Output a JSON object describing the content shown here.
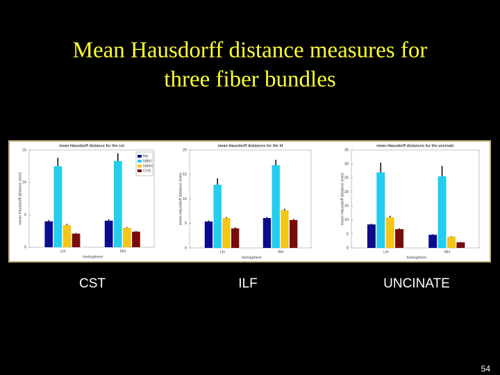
{
  "slide": {
    "title": [
      "Mean Hausdorff distance measures for",
      "three fiber bundles"
    ],
    "page_number": "54"
  },
  "chart_data": [
    {
      "type": "bar",
      "title": "mean Hausdorff distance for the cst",
      "ylabel": "mean Hausdorff distance (mm)",
      "xlabel": "hemisphere",
      "caption": "CST",
      "categories": [
        "LH",
        "RH"
      ],
      "ylim": [
        0,
        15
      ],
      "yticks": [
        0,
        5,
        10,
        15
      ],
      "legend": "upper right",
      "series": [
        {
          "name": "flirt",
          "color": "#0b0b8e",
          "values": [
            4.0,
            4.1
          ],
          "errors": [
            0.2,
            0.2
          ]
        },
        {
          "name": "faflirt",
          "color": "#22cdee",
          "values": [
            12.5,
            13.3
          ],
          "errors": [
            1.3,
            1.2
          ]
        },
        {
          "name": "fafnirt",
          "color": "#f5c518",
          "values": [
            3.4,
            3.0
          ],
          "errors": [
            0.2,
            0.1
          ]
        },
        {
          "name": "CVS",
          "color": "#7a0b0b",
          "values": [
            2.1,
            2.4
          ],
          "errors": [
            0.1,
            0.1
          ]
        }
      ]
    },
    {
      "type": "bar",
      "title": "mean Hausdorff distances for the ilf",
      "ylabel": "mean Hausdorff distance (mm)",
      "xlabel": "hemisphere",
      "caption": "ILF",
      "categories": [
        "LH",
        "RH"
      ],
      "ylim": [
        0,
        20
      ],
      "yticks": [
        0,
        5,
        10,
        15,
        20
      ],
      "series": [
        {
          "color": "#0b0b8e",
          "values": [
            5.4,
            6.1
          ],
          "errors": [
            0.2,
            0.2
          ]
        },
        {
          "color": "#22cdee",
          "values": [
            12.9,
            16.9
          ],
          "errors": [
            1.3,
            1.1
          ]
        },
        {
          "color": "#f5c518",
          "values": [
            6.1,
            7.7
          ],
          "errors": [
            0.2,
            0.3
          ]
        },
        {
          "color": "#7a0b0b",
          "values": [
            4.0,
            5.7
          ],
          "errors": [
            0.2,
            0.2
          ]
        }
      ]
    },
    {
      "type": "bar",
      "title": "mean Hausdorff distances for the uncinate",
      "ylabel": "mean Hausdorff distance (mm)",
      "xlabel": "hemisphere",
      "caption": "UNCINATE",
      "categories": [
        "LH",
        "RH"
      ],
      "ylim": [
        0,
        35
      ],
      "yticks": [
        0,
        5,
        10,
        15,
        20,
        25,
        30,
        35
      ],
      "series": [
        {
          "color": "#0b0b8e",
          "values": [
            8.4,
            4.7
          ],
          "errors": [
            0.3,
            0.2
          ]
        },
        {
          "color": "#22cdee",
          "values": [
            27,
            25.6
          ],
          "errors": [
            3.5,
            3.7
          ]
        },
        {
          "color": "#f5c518",
          "values": [
            10.9,
            4.0
          ],
          "errors": [
            0.6,
            0.2
          ]
        },
        {
          "color": "#7a0b0b",
          "values": [
            6.7,
            2.0
          ],
          "errors": [
            0.3,
            0.1
          ]
        }
      ]
    }
  ]
}
